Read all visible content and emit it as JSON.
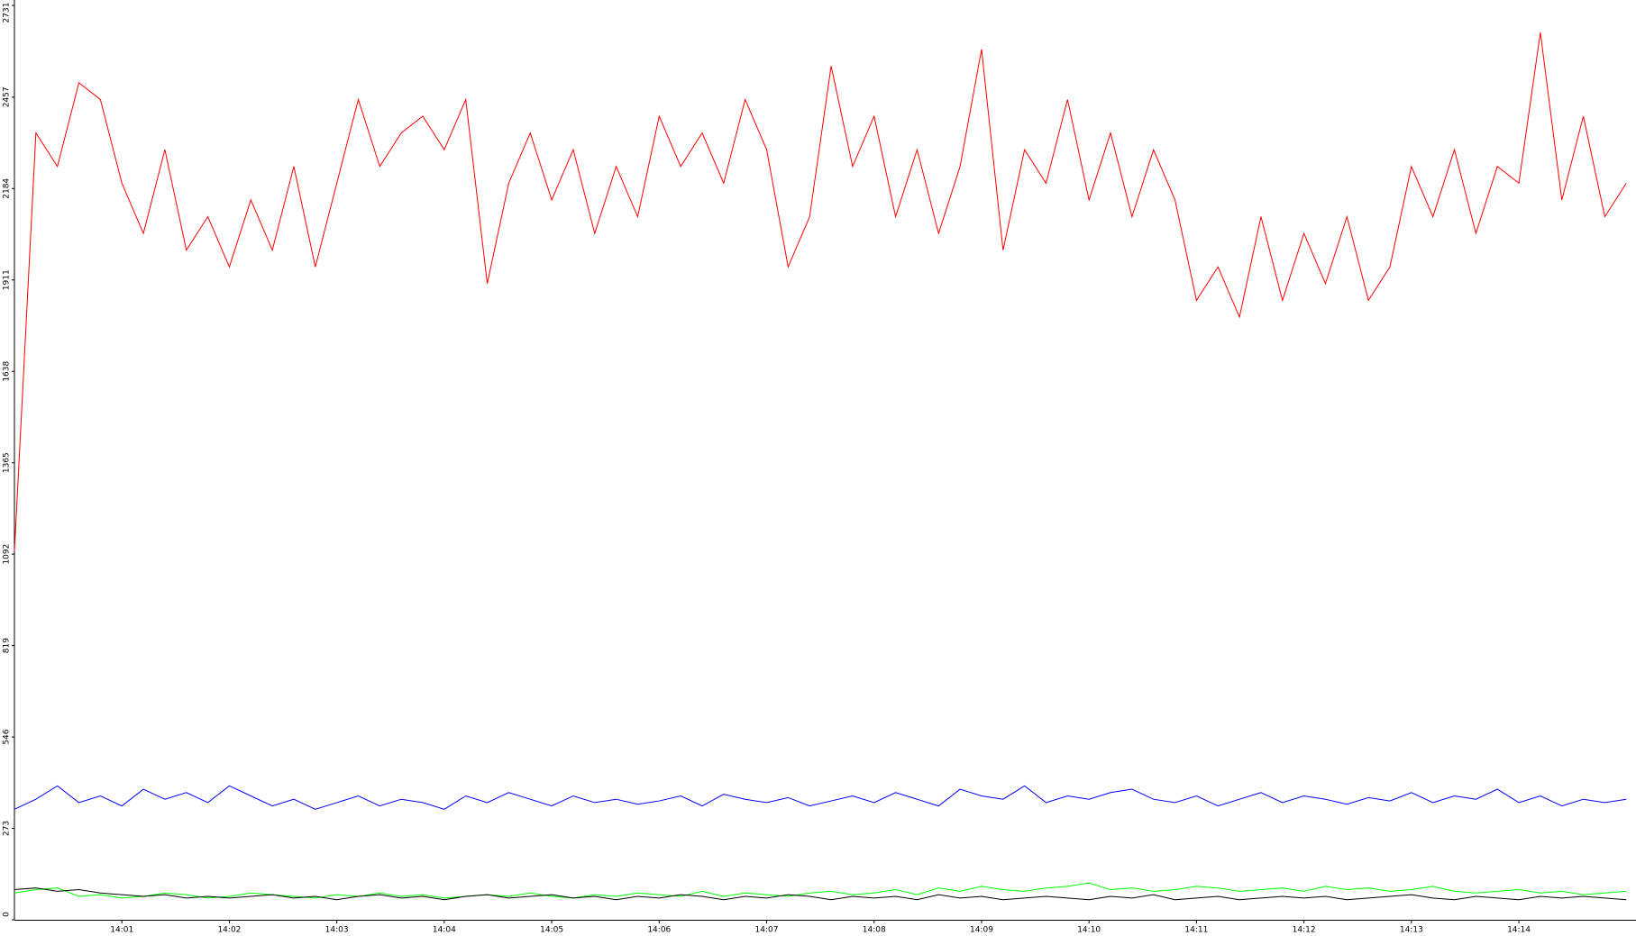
{
  "chart_data": {
    "type": "line",
    "x": [
      0,
      0.2,
      0.4,
      0.6,
      0.8,
      1,
      1.2,
      1.4,
      1.6,
      1.8,
      2,
      2.2,
      2.4,
      2.6,
      2.8,
      3,
      3.2,
      3.4,
      3.6,
      3.8,
      4,
      4.2,
      4.4,
      4.6,
      4.8,
      5,
      5.2,
      5.4,
      5.6,
      5.8,
      6,
      6.2,
      6.4,
      6.6,
      6.8,
      7,
      7.2,
      7.4,
      7.6,
      7.8,
      8,
      8.2,
      8.4,
      8.6,
      8.8,
      9,
      9.2,
      9.4,
      9.6,
      9.8,
      10,
      10.2,
      10.4,
      10.6,
      10.8,
      11,
      11.2,
      11.4,
      11.6,
      11.8,
      12,
      12.2,
      12.4,
      12.6,
      12.8,
      13,
      13.2,
      13.4,
      13.6,
      13.8,
      14,
      14.2,
      14.4,
      14.6,
      14.8,
      15
    ],
    "xlim": [
      0,
      15.09
    ],
    "xticks": [
      {
        "value": 1,
        "label": "14:01"
      },
      {
        "value": 2,
        "label": "14:02"
      },
      {
        "value": 3,
        "label": "14:03"
      },
      {
        "value": 4,
        "label": "14:04"
      },
      {
        "value": 5,
        "label": "14:05"
      },
      {
        "value": 6,
        "label": "14:06"
      },
      {
        "value": 7,
        "label": "14:07"
      },
      {
        "value": 8,
        "label": "14:08"
      },
      {
        "value": 9,
        "label": "14:09"
      },
      {
        "value": 10,
        "label": "14:10"
      },
      {
        "value": 11,
        "label": "14:11"
      },
      {
        "value": 12,
        "label": "14:12"
      },
      {
        "value": 13,
        "label": "14:13"
      },
      {
        "value": 14,
        "label": "14:14"
      }
    ],
    "ylim": [
      0,
      2731
    ],
    "yticks": [
      0,
      273,
      546,
      819,
      1092,
      1365,
      1638,
      1911,
      2184,
      2457,
      2731
    ],
    "series": [
      {
        "color": "#ff0000",
        "values": [
          1100,
          2350,
          2250,
          2500,
          2450,
          2200,
          2050,
          2300,
          2000,
          2100,
          1950,
          2150,
          2000,
          2250,
          1950,
          2200,
          2450,
          2250,
          2350,
          2400,
          2300,
          2450,
          1900,
          2200,
          2350,
          2150,
          2300,
          2050,
          2250,
          2100,
          2400,
          2250,
          2350,
          2200,
          2450,
          2300,
          1950,
          2100,
          2550,
          2250,
          2400,
          2100,
          2300,
          2050,
          2250,
          2600,
          2000,
          2300,
          2200,
          2450,
          2150,
          2350,
          2100,
          2300,
          2150,
          1850,
          1950,
          1800,
          2100,
          1850,
          2050,
          1900,
          2100,
          1850,
          1950,
          2250,
          2100,
          2300,
          2050,
          2250,
          2200,
          2650,
          2150,
          2400,
          2100,
          2200
        ]
      },
      {
        "color": "#0000ff",
        "values": [
          330,
          360,
          400,
          350,
          370,
          340,
          390,
          360,
          380,
          350,
          400,
          370,
          340,
          360,
          330,
          350,
          370,
          340,
          360,
          350,
          330,
          370,
          350,
          380,
          360,
          340,
          370,
          350,
          360,
          345,
          355,
          370,
          340,
          375,
          360,
          350,
          365,
          340,
          355,
          370,
          350,
          380,
          360,
          340,
          390,
          370,
          360,
          400,
          350,
          370,
          360,
          380,
          390,
          360,
          350,
          370,
          340,
          360,
          380,
          350,
          370,
          360,
          345,
          365,
          355,
          380,
          350,
          370,
          360,
          390,
          350,
          370,
          340,
          360,
          350,
          360
        ]
      },
      {
        "color": "#00ff00",
        "values": [
          80,
          90,
          95,
          70,
          75,
          65,
          70,
          80,
          75,
          65,
          70,
          80,
          75,
          70,
          65,
          75,
          70,
          80,
          70,
          75,
          65,
          70,
          75,
          70,
          80,
          70,
          65,
          75,
          70,
          80,
          75,
          70,
          85,
          70,
          80,
          75,
          70,
          80,
          85,
          75,
          80,
          90,
          75,
          95,
          85,
          100,
          90,
          85,
          95,
          100,
          110,
          90,
          95,
          85,
          90,
          100,
          95,
          85,
          90,
          95,
          85,
          100,
          90,
          95,
          85,
          90,
          100,
          85,
          80,
          85,
          90,
          80,
          85,
          75,
          80,
          85
        ]
      },
      {
        "color": "#000000",
        "values": [
          90,
          95,
          85,
          90,
          80,
          75,
          70,
          75,
          65,
          70,
          65,
          70,
          75,
          65,
          70,
          60,
          70,
          75,
          65,
          70,
          60,
          70,
          75,
          65,
          70,
          75,
          65,
          70,
          60,
          70,
          65,
          75,
          70,
          60,
          70,
          65,
          75,
          70,
          60,
          70,
          65,
          70,
          60,
          75,
          65,
          70,
          60,
          65,
          70,
          65,
          60,
          70,
          65,
          75,
          60,
          65,
          70,
          60,
          65,
          70,
          65,
          70,
          60,
          65,
          70,
          75,
          65,
          60,
          70,
          65,
          60,
          70,
          65,
          70,
          65,
          60
        ]
      }
    ]
  }
}
